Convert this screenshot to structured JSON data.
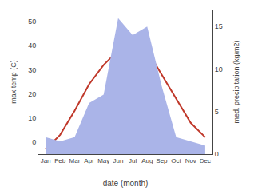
{
  "chart_data": {
    "type": "line",
    "categories": [
      "Jan",
      "Feb",
      "Mar",
      "Apr",
      "May",
      "Jun",
      "Jul",
      "Aug",
      "Sep",
      "Oct",
      "Nov",
      "Dec"
    ],
    "xlabel": "date (month)",
    "ylabel": "max temp (C)",
    "y2label": "med. precipitation (kg/m2)",
    "series": [
      {
        "type": "area",
        "axis": "y2",
        "color": "#aab4e8",
        "values": [
          2,
          1.5,
          2,
          6,
          7,
          16,
          14,
          15,
          8,
          2,
          1.5,
          1
        ]
      },
      {
        "type": "line",
        "color": "#c0392b",
        "values": [
          -3,
          3,
          13,
          24,
          32,
          38,
          40,
          38,
          28,
          18,
          8,
          2
        ]
      }
    ],
    "ylim": [
      -5,
      55
    ],
    "yticks": [
      0,
      10,
      20,
      30,
      40,
      50
    ],
    "y2lim": [
      0,
      17
    ],
    "y2ticks": [
      0,
      5,
      10,
      15
    ],
    "grid": false
  }
}
